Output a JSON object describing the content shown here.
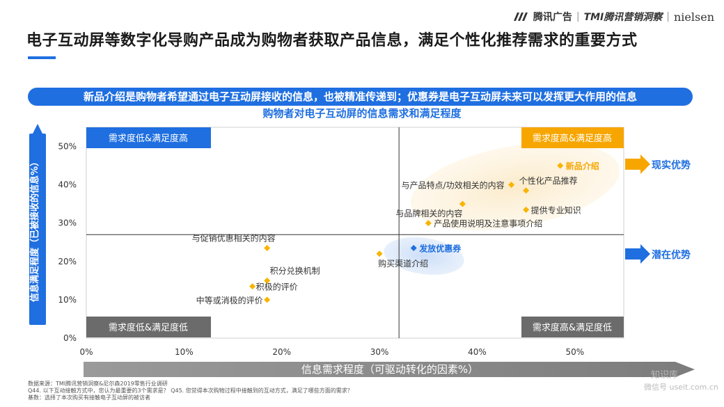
{
  "brand": {
    "name1": "腾讯广告",
    "name2": "TMI腾讯营销洞察",
    "name3": "nielsen"
  },
  "title": "电子互动屏等数字化导购产品成为购物者获取产品信息，满足个性化推荐需求的重要方式",
  "banner": "新品介绍是购物者希望通过电子互动屏接收的信息，也被精准传递到；优惠券是电子互动屏未来可以发挥更大作用的信息",
  "chart_data": {
    "type": "scatter",
    "title": "购物者对电子互动屏的信息需求和满足程度",
    "xlabel": "信息需求程度（可驱动转化的因素%）",
    "ylabel": "信息满足程度（已被接收的信息%）",
    "xlim": [
      0,
      55
    ],
    "ylim": [
      0,
      55
    ],
    "x_ticks": [
      "0%",
      "10%",
      "20%",
      "30%",
      "40%",
      "50%"
    ],
    "y_ticks": [
      "0%",
      "10%",
      "20%",
      "30%",
      "40%",
      "50%"
    ],
    "x_divider": 32,
    "y_divider": 27,
    "quadrants": {
      "top_left": "需求度低&满足度高",
      "top_right": "需求度高&满足度高",
      "bottom_left": "需求度低&满足度低",
      "bottom_right": "需求度高&满足度低"
    },
    "arrows": {
      "upper": "现实优势",
      "lower": "潜在优势"
    },
    "points": [
      {
        "label": "新品介绍",
        "x": 48.5,
        "y": 45,
        "highlight": "orange"
      },
      {
        "label": "与产品特点/功效相关的内容",
        "x": 43.5,
        "y": 40,
        "highlight": ""
      },
      {
        "label": "个性化产品推荐",
        "x": 45,
        "y": 38.5,
        "highlight": ""
      },
      {
        "label": "与品牌相关的内容",
        "x": 38.5,
        "y": 35,
        "highlight": ""
      },
      {
        "label": "提供专业知识",
        "x": 45,
        "y": 33.5,
        "highlight": ""
      },
      {
        "label": "产品使用说明及注意事项介绍",
        "x": 35,
        "y": 30,
        "highlight": ""
      },
      {
        "label": "与促销优惠相关的内容",
        "x": 18.5,
        "y": 23.5,
        "highlight": ""
      },
      {
        "label": "发放优惠券",
        "x": 33.5,
        "y": 23.5,
        "highlight": "blue"
      },
      {
        "label": "购买渠道介绍",
        "x": 30,
        "y": 22,
        "highlight": ""
      },
      {
        "label": "积分兑换机制",
        "x": 18.5,
        "y": 15,
        "highlight": ""
      },
      {
        "label": "积极的评价",
        "x": 17,
        "y": 13.5,
        "highlight": ""
      },
      {
        "label": "中等或消极的评价",
        "x": 18.5,
        "y": 10,
        "highlight": ""
      }
    ]
  },
  "footnotes": {
    "line1": "数据来源：TMI腾讯营销洞察&尼尔森2019零售行业调研",
    "line2": "Q44. 以下互动接触方式中，您认为最重要的3个需求是？ Q45. 您觉得本次购物过程中接触到的互动方式，满足了哪些方面的需求？",
    "line3": "基数：选择了本次购买有接触电子互动屏的被访者"
  },
  "watermark": {
    "line1": "知识库",
    "line2": "微信号 useit.com.cn"
  },
  "colors": {
    "blue": "#1f6fe0",
    "orange": "#f7a600",
    "gray_box": "#6b6b6b",
    "xbar_gray": "#9a9a9a"
  }
}
